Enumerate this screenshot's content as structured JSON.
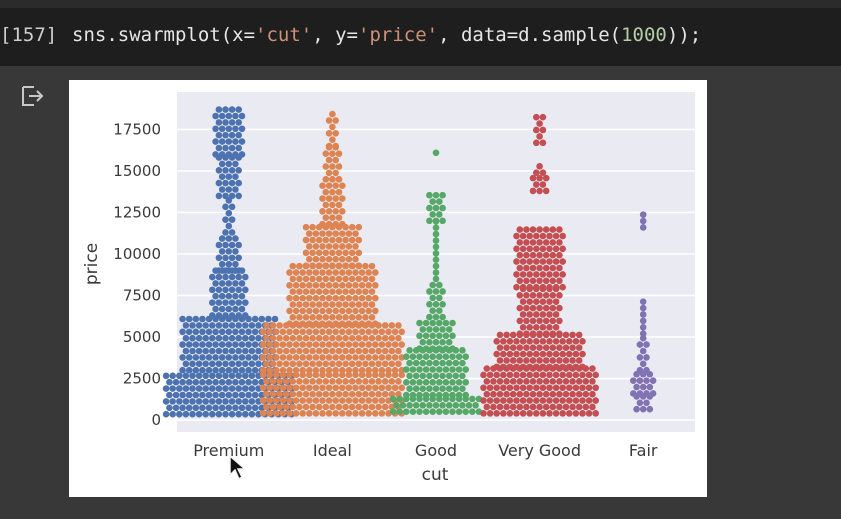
{
  "cell": {
    "prompt": "[157]",
    "code": {
      "t1": "sns.swarmplot(x=",
      "s1": "'cut'",
      "t2": ", y=",
      "s2": "'price'",
      "t3": ", data=d.sample(",
      "n1": "1000",
      "t4": "));"
    }
  },
  "output": {
    "icon": "output-redirect-icon"
  },
  "chart_data": {
    "type": "swarm",
    "title": "",
    "xlabel": "cut",
    "ylabel": "price",
    "ylim": [
      0,
      19000
    ],
    "yticks": [
      0,
      2500,
      5000,
      7500,
      10000,
      12500,
      15000,
      17500
    ],
    "categories": [
      "Premium",
      "Ideal",
      "Good",
      "Very Good",
      "Fair"
    ],
    "colors": [
      "#4c72b0",
      "#dd8452",
      "#55a868",
      "#c44e52",
      "#8172b3"
    ],
    "series": [
      {
        "name": "Premium",
        "approx_count": 250,
        "range": [
          350,
          18600
        ],
        "sample_values": [
          600,
          800,
          1000,
          1200,
          1500,
          1800,
          2000,
          2300,
          2600,
          2900,
          3200,
          3600,
          4000,
          4400,
          4800,
          5200,
          5600,
          6000,
          6300,
          6800,
          7300,
          7700,
          8200,
          8700,
          9500,
          10200,
          10800,
          11200,
          12600,
          13300,
          13900,
          14500,
          15500,
          16000,
          16500,
          17200,
          17800,
          18400,
          18600
        ]
      },
      {
        "name": "Ideal",
        "approx_count": 390,
        "range": [
          400,
          18800
        ],
        "sample_values": [
          600,
          800,
          1100,
          1400,
          1700,
          2000,
          2300,
          2700,
          3100,
          3600,
          4100,
          4600,
          5200,
          5800,
          6300,
          6800,
          7300,
          7800,
          8300,
          8800,
          9200,
          10200,
          10800,
          11400,
          11800,
          12300,
          13400,
          13900,
          14500,
          15500,
          16000,
          16500,
          17400,
          18000,
          18800
        ]
      },
      {
        "name": "Good",
        "approx_count": 95,
        "range": [
          500,
          16300
        ],
        "sample_values": [
          600,
          800,
          1100,
          1500,
          2000,
          2500,
          3000,
          3500,
          4000,
          4400,
          4800,
          5300,
          5800,
          6200,
          7200,
          7800,
          8400,
          9300,
          10200,
          10900,
          11700,
          12100,
          12600,
          13300,
          13500,
          16300
        ]
      },
      {
        "name": "Very Good",
        "approx_count": 230,
        "range": [
          400,
          18200
        ],
        "sample_values": [
          600,
          800,
          1100,
          1400,
          1800,
          2200,
          2600,
          3000,
          3400,
          3800,
          4200,
          4700,
          5100,
          5600,
          6200,
          6800,
          7300,
          7800,
          8300,
          8800,
          9400,
          10000,
          10600,
          11000,
          11600,
          14000,
          14500,
          15200,
          16900,
          17200,
          17700,
          18200
        ]
      },
      {
        "name": "Fair",
        "approx_count": 20,
        "range": [
          700,
          12600
        ],
        "sample_values": [
          700,
          1200,
          1400,
          2000,
          2400,
          2600,
          3200,
          3800,
          4400,
          5000,
          5800,
          6600,
          7400,
          11800,
          12600
        ]
      }
    ]
  }
}
